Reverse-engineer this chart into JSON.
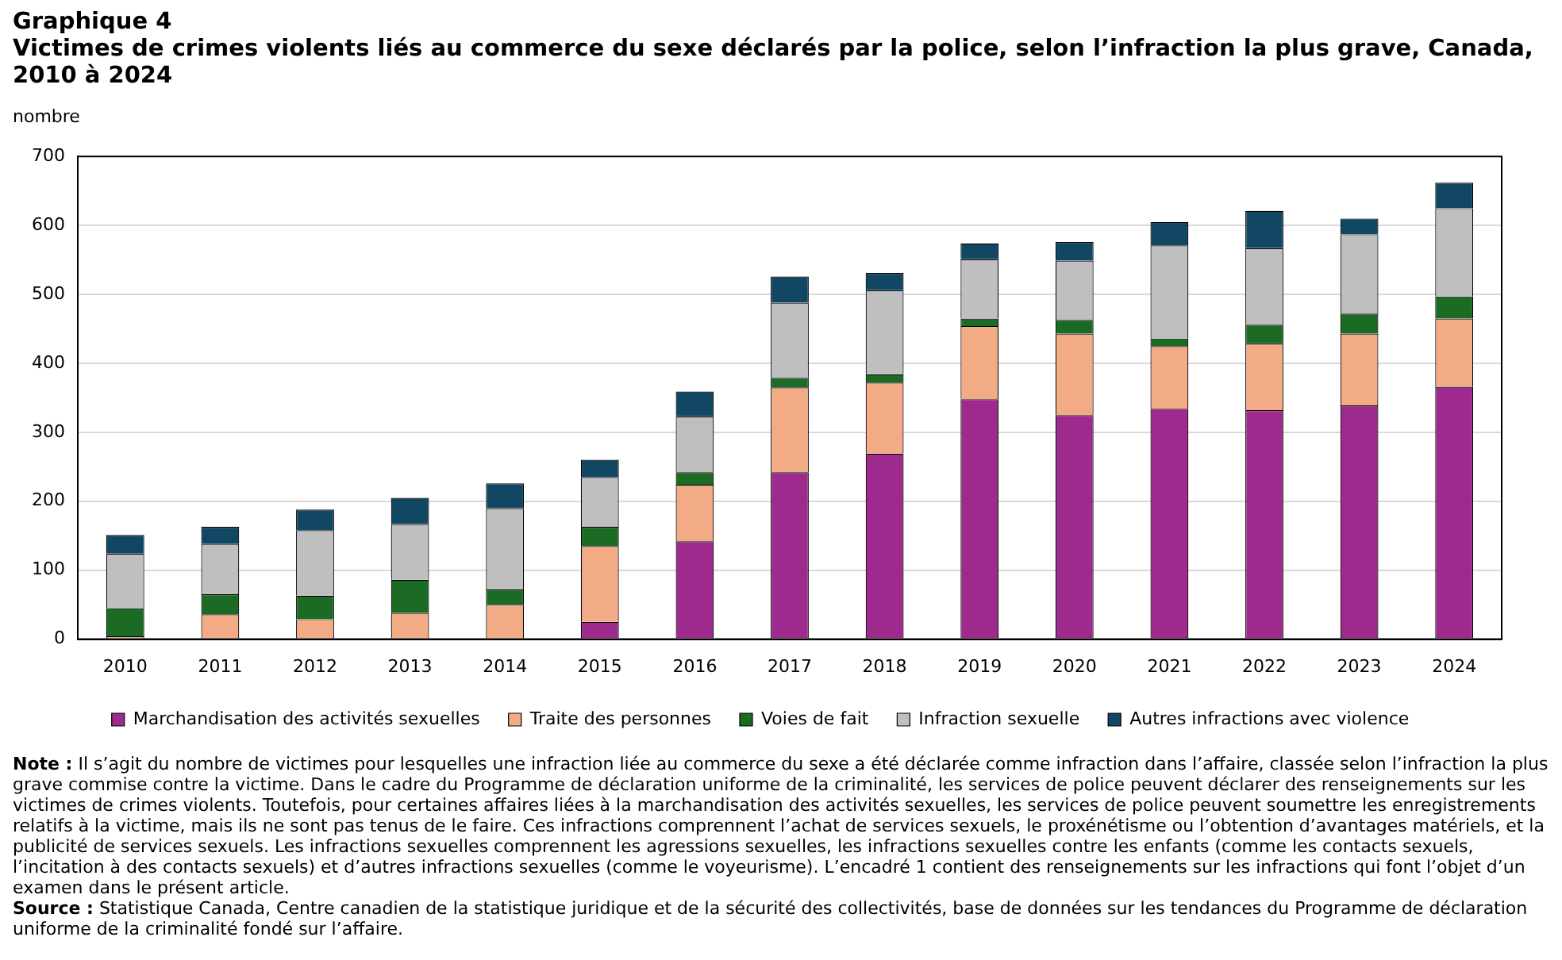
{
  "chart_data": {
    "type": "bar",
    "stacked": true,
    "title": "Graphique 4",
    "subtitle": "Victimes de crimes violents liés au commerce du sexe déclarés par la police, selon l’infraction la plus grave, Canada, 2010 à 2024",
    "ylabel": "nombre",
    "categories": [
      "2010",
      "2011",
      "2012",
      "2013",
      "2014",
      "2015",
      "2016",
      "2017",
      "2018",
      "2019",
      "2020",
      "2021",
      "2022",
      "2023",
      "2024"
    ],
    "series": [
      {
        "name": "Marchandisation des activités sexuelles",
        "color": "#9e2a8e",
        "values": [
          0,
          0,
          0,
          0,
          0,
          25,
          142,
          242,
          269,
          348,
          325,
          334,
          332,
          339,
          366
        ]
      },
      {
        "name": "Traite des personnes",
        "color": "#f2ab85",
        "values": [
          4,
          36,
          29,
          38,
          50,
          110,
          82,
          123,
          103,
          106,
          118,
          91,
          97,
          104,
          99
        ]
      },
      {
        "name": "Voies de fait",
        "color": "#1b6b25",
        "values": [
          41,
          29,
          34,
          48,
          22,
          28,
          18,
          14,
          12,
          11,
          20,
          11,
          27,
          29,
          32
        ]
      },
      {
        "name": "Infraction sexuelle",
        "color": "#bfbfbf",
        "values": [
          79,
          73,
          95,
          81,
          118,
          72,
          81,
          109,
          122,
          86,
          86,
          135,
          111,
          115,
          128
        ]
      },
      {
        "name": "Autres infractions avec violence",
        "color": "#124764",
        "values": [
          27,
          25,
          30,
          38,
          36,
          25,
          36,
          38,
          25,
          23,
          27,
          34,
          54,
          23,
          37
        ]
      }
    ],
    "ylim": [
      0,
      700
    ],
    "yticks": [
      0,
      100,
      200,
      300,
      400,
      500,
      600,
      700
    ],
    "grid": "y",
    "legend": "bottom",
    "annotations": [
      "Note : Il s’agit du nombre de victimes pour lesquelles une infraction liée au commerce du sexe a été déclarée comme infraction dans l’affaire, classée selon l’infraction la plus grave commise contre la victime. Dans le cadre du Programme de déclaration uniforme de la criminalité, les services de police peuvent déclarer des renseignements sur les victimes de crimes violents. Toutefois, pour certaines affaires liées à la marchandisation des activités sexuelles, les services de police peuvent soumettre les enregistrements relatifs à la victime, mais ils ne sont pas tenus de le faire. Ces infractions comprennent l’achat de services sexuels, le proxénétisme ou l’obtention d’avantages matériels, et la publicité de services sexuels. Les infractions sexuelles comprennent les agressions sexuelles, les infractions sexuelles contre les enfants (comme les contacts sexuels, l’incitation à des contacts sexuels) et d’autres infractions sexuelles (comme le voyeurisme). L’encadré 1 contient des renseignements sur les infractions qui font l’objet d’un examen dans le présent article.",
      "Source : Statistique Canada, Centre canadien de la statistique juridique et de la sécurité des collectivités, base de données sur les tendances du Programme de déclaration uniforme de la criminalité fondé sur l’affaire."
    ]
  }
}
